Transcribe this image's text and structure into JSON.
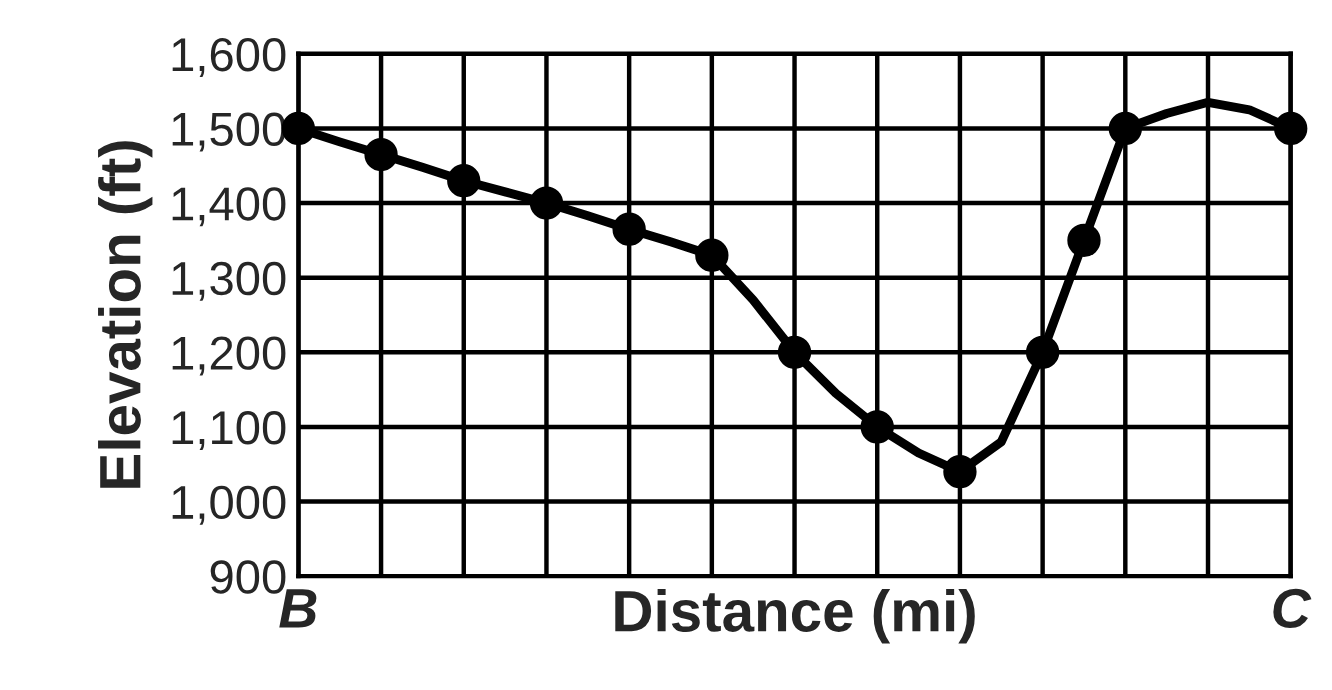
{
  "chart_data": {
    "type": "line",
    "xlabel": "Distance (mi)",
    "ylabel": "Elevation (ft)",
    "categories": [
      "B",
      null,
      null,
      null,
      null,
      null,
      null,
      null,
      null,
      null,
      null,
      null,
      null,
      null,
      null,
      null,
      null,
      null,
      null,
      null,
      null,
      null,
      null,
      null,
      "C"
    ],
    "ylim": [
      900,
      1600
    ],
    "yticks": [
      {
        "value": 900,
        "label": "900"
      },
      {
        "value": 1000,
        "label": "1,000"
      },
      {
        "value": 1100,
        "label": "1,100"
      },
      {
        "value": 1200,
        "label": "1,200"
      },
      {
        "value": 1300,
        "label": "1,300"
      },
      {
        "value": 1400,
        "label": "1,400"
      },
      {
        "value": 1500,
        "label": "1,500"
      },
      {
        "value": 1600,
        "label": "1,600"
      }
    ],
    "grid": true,
    "series": [
      {
        "color": "#000000",
        "marker": "none",
        "values": [
          1500,
          1482,
          1465,
          1448,
          1430,
          1415,
          1400,
          1383,
          1365,
          1348,
          1330,
          1270,
          1200,
          1145,
          1100,
          1065,
          1040,
          1080,
          1200,
          1350,
          1500,
          1520,
          1535,
          1525,
          1500
        ]
      },
      {
        "type": "scatter",
        "color": "#000000",
        "marker": "circle",
        "values": [
          1500,
          null,
          1465,
          null,
          1430,
          null,
          1400,
          null,
          1365,
          null,
          1330,
          null,
          1200,
          null,
          1100,
          null,
          1040,
          null,
          1200,
          1350,
          1500,
          null,
          null,
          null,
          1500
        ]
      }
    ]
  }
}
